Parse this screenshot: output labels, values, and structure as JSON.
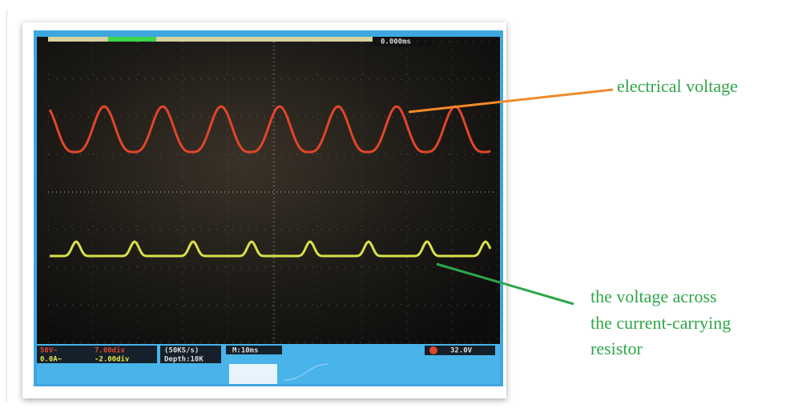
{
  "annotations": {
    "electrical_voltage": "electrical voltage",
    "resistor_voltage": [
      "the voltage across",
      "the current-carrying",
      "resistor"
    ]
  },
  "screen": {
    "time_offset": "0.000ms",
    "ch1_scale": "50V~",
    "ch1_position": "7.00div",
    "ch2_scale": "0.0A~",
    "ch2_position": "-2.00div",
    "sample_rate": "(50KS/s)",
    "depth": "Depth:10K",
    "timebase": "M:10ms",
    "trigger_level": "32.0V"
  }
}
